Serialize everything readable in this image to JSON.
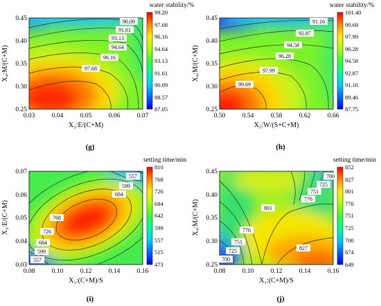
{
  "panels": [
    {
      "label": "(g)",
      "cb_title": "water stability/%",
      "xlabel": "X₂:E/(C+M)",
      "ylabel": "X₄:M/(C+M)",
      "xticks": [
        "0.03",
        "0.04",
        "0.05",
        "0.06",
        "0.07"
      ],
      "yticks": [
        "0.25",
        "0.30",
        "0.35",
        "0.40",
        "0.45"
      ],
      "cb_ticks": [
        "99.20",
        "97.68",
        "96.16",
        "94.64",
        "93.13",
        "91.61",
        "90.09",
        "88.57",
        "87.05"
      ],
      "contour_labels": [
        "90.09",
        "91.61",
        "93.13",
        "94.64",
        "96.16",
        "97.68"
      ]
    },
    {
      "label": "(h)",
      "cb_title": "water stability/%",
      "xlabel": "X₃:W/(S+C+M)",
      "ylabel": "X₄:M/(C+M)",
      "xticks": [
        "0.50",
        "0.54",
        "0.58",
        "0.62",
        "0.66"
      ],
      "yticks": [
        "0.25",
        "0.30",
        "0.35",
        "0.40",
        "0.45"
      ],
      "cb_ticks": [
        "101.40",
        "99.69",
        "97.99",
        "96.28",
        "94.58",
        "92.87",
        "91.16",
        "89.46",
        "87.75"
      ],
      "contour_labels": [
        "91.16",
        "92.87",
        "94.58",
        "96.28",
        "97.99",
        "99.69"
      ]
    },
    {
      "label": "(i)",
      "cb_title": "setting time/min",
      "xlabel": "X₁:(C+M)/S",
      "ylabel": "X₂:E/(C+M)",
      "xticks": [
        "0.08",
        "0.10",
        "0.12",
        "0.14",
        "0.16"
      ],
      "yticks": [
        "0.03",
        "0.04",
        "0.05",
        "0.06",
        "0.07"
      ],
      "cb_ticks": [
        "810",
        "768",
        "726",
        "684",
        "642",
        "599",
        "557",
        "515",
        "473"
      ],
      "contour_labels": [
        "557",
        "599",
        "684",
        "768",
        "726",
        "684",
        "599",
        "557"
      ]
    },
    {
      "label": "(j)",
      "cb_title": "setting time/min",
      "xlabel": "X₁:(C+M)/S",
      "ylabel": "X₄:M/(C+M)",
      "xticks": [
        "0.08",
        "0.10",
        "0.12",
        "0.14",
        "0.16"
      ],
      "yticks": [
        "0.25",
        "0.30",
        "0.35",
        "0.40",
        "0.45"
      ],
      "cb_ticks": [
        "852",
        "827",
        "801",
        "776",
        "751",
        "725",
        "700",
        "674",
        "649"
      ],
      "contour_labels": [
        "700",
        "725",
        "751",
        "776",
        "801",
        "776",
        "751",
        "725",
        "700",
        "827"
      ]
    }
  ],
  "chart_data": [
    {
      "type": "heatmap",
      "title": "water stability/%",
      "xlabel": "X₂:E/(C+M)",
      "ylabel": "X₄:M/(C+M)",
      "xlim": [
        0.03,
        0.07
      ],
      "ylim": [
        0.25,
        0.45
      ],
      "colorbar_range": [
        87.05,
        99.2
      ],
      "contour_levels": [
        90.09,
        91.61,
        93.13,
        94.64,
        96.16,
        97.68
      ],
      "maximum": {
        "x": 0.04,
        "y": 0.29,
        "value": 99.2
      }
    },
    {
      "type": "heatmap",
      "title": "water stability/%",
      "xlabel": "X₃:W/(S+C+M)",
      "ylabel": "X₄:M/(C+M)",
      "xlim": [
        0.5,
        0.66
      ],
      "ylim": [
        0.25,
        0.45
      ],
      "colorbar_range": [
        87.75,
        101.4
      ],
      "contour_levels": [
        91.16,
        92.87,
        94.58,
        96.28,
        97.99,
        99.69
      ],
      "maximum": {
        "x": 0.51,
        "y": 0.26,
        "value": 101.4
      }
    },
    {
      "type": "heatmap",
      "title": "setting time/min",
      "xlabel": "X₁:(C+M)/S",
      "ylabel": "X₂:E/(C+M)",
      "xlim": [
        0.08,
        0.16
      ],
      "ylim": [
        0.03,
        0.07
      ],
      "colorbar_range": [
        473,
        810
      ],
      "contour_levels": [
        557,
        599,
        684,
        726,
        768
      ],
      "maximum": {
        "x": 0.125,
        "y": 0.048,
        "value": 810
      }
    },
    {
      "type": "heatmap",
      "title": "setting time/min",
      "xlabel": "X₁:(C+M)/S",
      "ylabel": "X₄:M/(C+M)",
      "xlim": [
        0.08,
        0.16
      ],
      "ylim": [
        0.25,
        0.45
      ],
      "colorbar_range": [
        649,
        852
      ],
      "contour_levels": [
        700,
        725,
        751,
        776,
        801,
        827
      ],
      "maximum": {
        "x": 0.15,
        "y": 0.26,
        "value": 852
      }
    }
  ]
}
